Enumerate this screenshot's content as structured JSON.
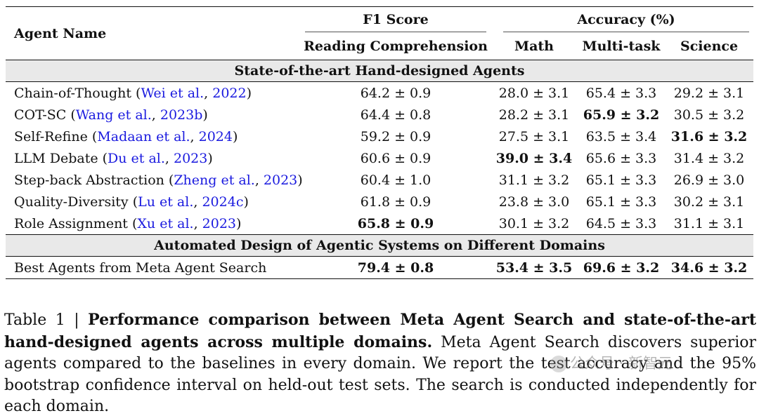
{
  "table": {
    "header": {
      "agent_name": "Agent Name",
      "f1_group": "F1 Score",
      "acc_group": "Accuracy (%)",
      "col_reading": "Reading Comprehension",
      "col_math": "Math",
      "col_multitask": "Multi-task",
      "col_science": "Science"
    },
    "section1_title": "State-of-the-art Hand-designed Agents",
    "rows": [
      {
        "name": "Chain-of-Thought (",
        "cite": "Wei et al.",
        "sep": ", ",
        "year": "2022",
        "close": ")",
        "reading": "64.2 ± 0.9",
        "math": "28.0 ± 3.1",
        "multitask": "65.4 ± 3.3",
        "science": "29.2 ± 3.1"
      },
      {
        "name": "COT-SC (",
        "cite": "Wang et al.",
        "sep": ", ",
        "year": "2023b",
        "close": ")",
        "reading": "64.4 ± 0.8",
        "math": "28.2 ± 3.1",
        "multitask": "65.9 ± 3.2",
        "science": "30.5 ± 3.2"
      },
      {
        "name": "Self-Refine (",
        "cite": "Madaan et al.",
        "sep": ", ",
        "year": "2024",
        "close": ")",
        "reading": "59.2 ± 0.9",
        "math": "27.5 ± 3.1",
        "multitask": "63.5 ± 3.4",
        "science": "31.6 ± 3.2"
      },
      {
        "name": "LLM Debate (",
        "cite": "Du et al.",
        "sep": ", ",
        "year": "2023",
        "close": ")",
        "reading": "60.6 ± 0.9",
        "math": "39.0 ± 3.4",
        "multitask": "65.6 ± 3.3",
        "science": "31.4 ± 3.2"
      },
      {
        "name": "Step-back Abstraction (",
        "cite": "Zheng et al.",
        "sep": ", ",
        "year": "2023",
        "close": ")",
        "reading": "60.4 ± 1.0",
        "math": "31.1 ± 3.2",
        "multitask": "65.1 ± 3.3",
        "science": "26.9 ± 3.0"
      },
      {
        "name": "Quality-Diversity (",
        "cite": "Lu et al.",
        "sep": ", ",
        "year": "2024c",
        "close": ")",
        "reading": "61.8 ± 0.9",
        "math": "23.8 ± 3.0",
        "multitask": "65.1 ± 3.3",
        "science": "30.2 ± 3.1"
      },
      {
        "name": "Role Assignment (",
        "cite": "Xu et al.",
        "sep": ", ",
        "year": "2023",
        "close": ")",
        "reading": "65.8 ± 0.9",
        "math": "30.1 ± 3.2",
        "multitask": "64.5 ± 3.3",
        "science": "31.1 ± 3.1"
      }
    ],
    "section2_title": "Automated Design of Agentic Systems on Different Domains",
    "best": {
      "name": "Best Agents from Meta Agent Search",
      "reading": "79.4 ± 0.8",
      "math": "53.4 ± 3.5",
      "multitask": "69.6 ± 3.2",
      "science": "34.6 ± 3.2"
    }
  },
  "caption": {
    "prefix": "Table 1 | ",
    "bold": "Performance comparison between Meta Agent Search and state-of-the-art hand-designed agents across multiple domains.",
    "rest": " Meta Agent Search discovers superior agents compared to the baselines in every domain. We report the test accuracy and the 95% bootstrap confidence interval on held-out test sets. The search is conducted independently for each domain."
  },
  "watermark": {
    "text": "公众号 · 新智元"
  }
}
